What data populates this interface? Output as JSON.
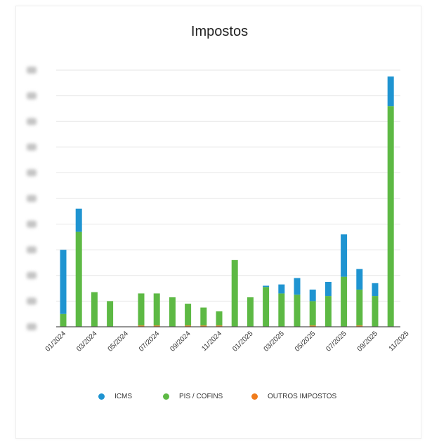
{
  "title": "Impostos",
  "chart_data": {
    "type": "bar",
    "stacked": true,
    "title": "Impostos",
    "xlabel": "",
    "ylabel": "",
    "y_tick_labels_blurred": true,
    "categories": [
      "01/2024",
      "02/2024",
      "03/2024",
      "04/2024",
      "05/2024",
      "06/2024",
      "07/2024",
      "08/2024",
      "09/2024",
      "10/2024",
      "11/2024",
      "12/2024",
      "01/2025",
      "02/2025",
      "03/2025",
      "04/2025",
      "05/2025",
      "06/2025",
      "07/2025",
      "08/2025",
      "09/2025",
      "10/2025"
    ],
    "x_tick_labels": [
      "01/2024",
      "03/2024",
      "05/2024",
      "07/2024",
      "09/2024",
      "11/2024",
      "01/2025",
      "03/2025",
      "05/2025",
      "07/2025",
      "09/2025",
      "11/2025"
    ],
    "ylim": [
      0,
      100
    ],
    "grid": true,
    "legend_position": "bottom",
    "series": [
      {
        "name": "OUTROS IMPOSTOS",
        "color": "#f07c1c",
        "values": [
          0,
          0,
          0,
          0,
          0,
          0.5,
          0.5,
          0,
          0.5,
          0.5,
          0.5,
          0,
          0,
          0,
          0,
          0,
          0.5,
          0,
          0,
          0.5,
          0,
          0
        ]
      },
      {
        "name": "PIS / COFINS",
        "color": "#5db944",
        "values": [
          5,
          37,
          13.5,
          10,
          0,
          12.5,
          12.5,
          11.5,
          8.5,
          7,
          5.5,
          26,
          11.5,
          15.5,
          13,
          12.5,
          9.5,
          12,
          19.5,
          14,
          12,
          86
        ]
      },
      {
        "name": "ICMS",
        "color": "#1f94d1",
        "values": [
          25,
          9,
          0,
          0,
          0,
          0,
          0,
          0,
          0,
          0,
          0,
          0,
          0,
          0.5,
          3.5,
          6.5,
          4.5,
          5.5,
          16.5,
          8,
          5,
          11.5
        ]
      }
    ]
  },
  "legend": [
    {
      "label": "ICMS",
      "color": "#1f94d1"
    },
    {
      "label": "PIS / COFINS",
      "color": "#5db944"
    },
    {
      "label": "OUTROS IMPOSTOS",
      "color": "#f07c1c"
    }
  ]
}
